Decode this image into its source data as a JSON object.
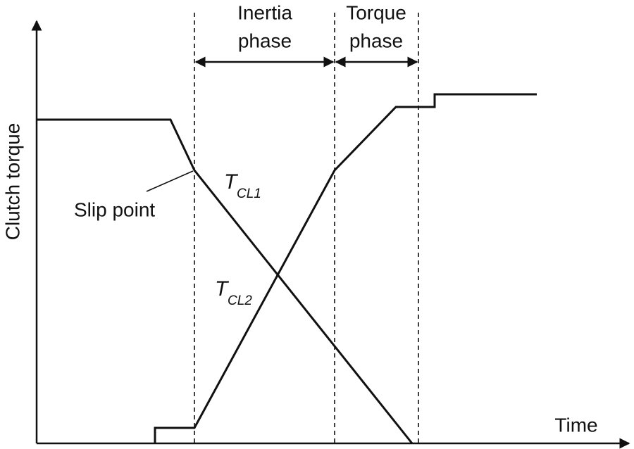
{
  "axes": {
    "y_label": "Clutch torque",
    "x_label": "Time"
  },
  "phases": [
    {
      "label_lines": [
        "Inertia",
        "phase"
      ]
    },
    {
      "label_lines": [
        "Torque",
        "phase"
      ]
    }
  ],
  "annotations": {
    "slip_point": "Slip point"
  },
  "curves": [
    {
      "symbol": "T",
      "subscript": "CL1"
    },
    {
      "symbol": "T",
      "subscript": "CL2"
    }
  ]
}
